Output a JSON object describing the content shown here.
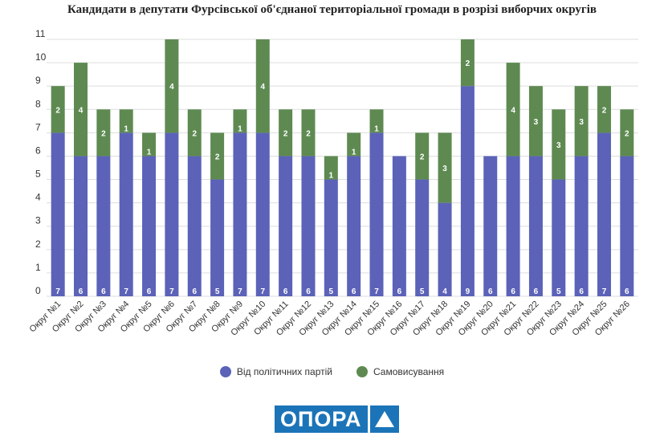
{
  "chart_data": {
    "type": "bar",
    "stacked": true,
    "title": "Кандидати в депутати Фурсівської об'єднаної територіальної громади в розрізі виборчих округів",
    "xlabel": "",
    "ylabel": "",
    "ylim": [
      0,
      11
    ],
    "yticks": [
      0,
      1,
      2,
      3,
      4,
      5,
      6,
      7,
      8,
      9,
      10,
      11
    ],
    "grid": true,
    "legend_position": "bottom",
    "categories": [
      "Округ №1",
      "Округ №2",
      "Округ №3",
      "Округ №4",
      "Округ №5",
      "Округ №6",
      "Округ №7",
      "Округ №8",
      "Округ №9",
      "Округ №10",
      "Округ №11",
      "Округ №12",
      "Округ №13",
      "Округ №14",
      "Округ №15",
      "Округ №16",
      "Округ №17",
      "Округ №18",
      "Округ №19",
      "Округ №20",
      "Округ №21",
      "Округ №22",
      "Округ №23",
      "Округ №24",
      "Округ №25",
      "Округ №26"
    ],
    "series": [
      {
        "name": "Від політичних партій",
        "color": "#5b62b8",
        "values": [
          7,
          6,
          6,
          7,
          6,
          7,
          6,
          5,
          7,
          7,
          6,
          6,
          5,
          6,
          7,
          6,
          5,
          4,
          9,
          6,
          6,
          6,
          5,
          6,
          7,
          6
        ]
      },
      {
        "name": "Самовисування",
        "color": "#5e8a52",
        "values": [
          2,
          4,
          2,
          1,
          1,
          4,
          2,
          2,
          1,
          4,
          2,
          2,
          1,
          1,
          1,
          0,
          2,
          3,
          2,
          0,
          4,
          3,
          3,
          3,
          2,
          2
        ]
      }
    ]
  },
  "logo": {
    "text": "ОПОРА"
  }
}
